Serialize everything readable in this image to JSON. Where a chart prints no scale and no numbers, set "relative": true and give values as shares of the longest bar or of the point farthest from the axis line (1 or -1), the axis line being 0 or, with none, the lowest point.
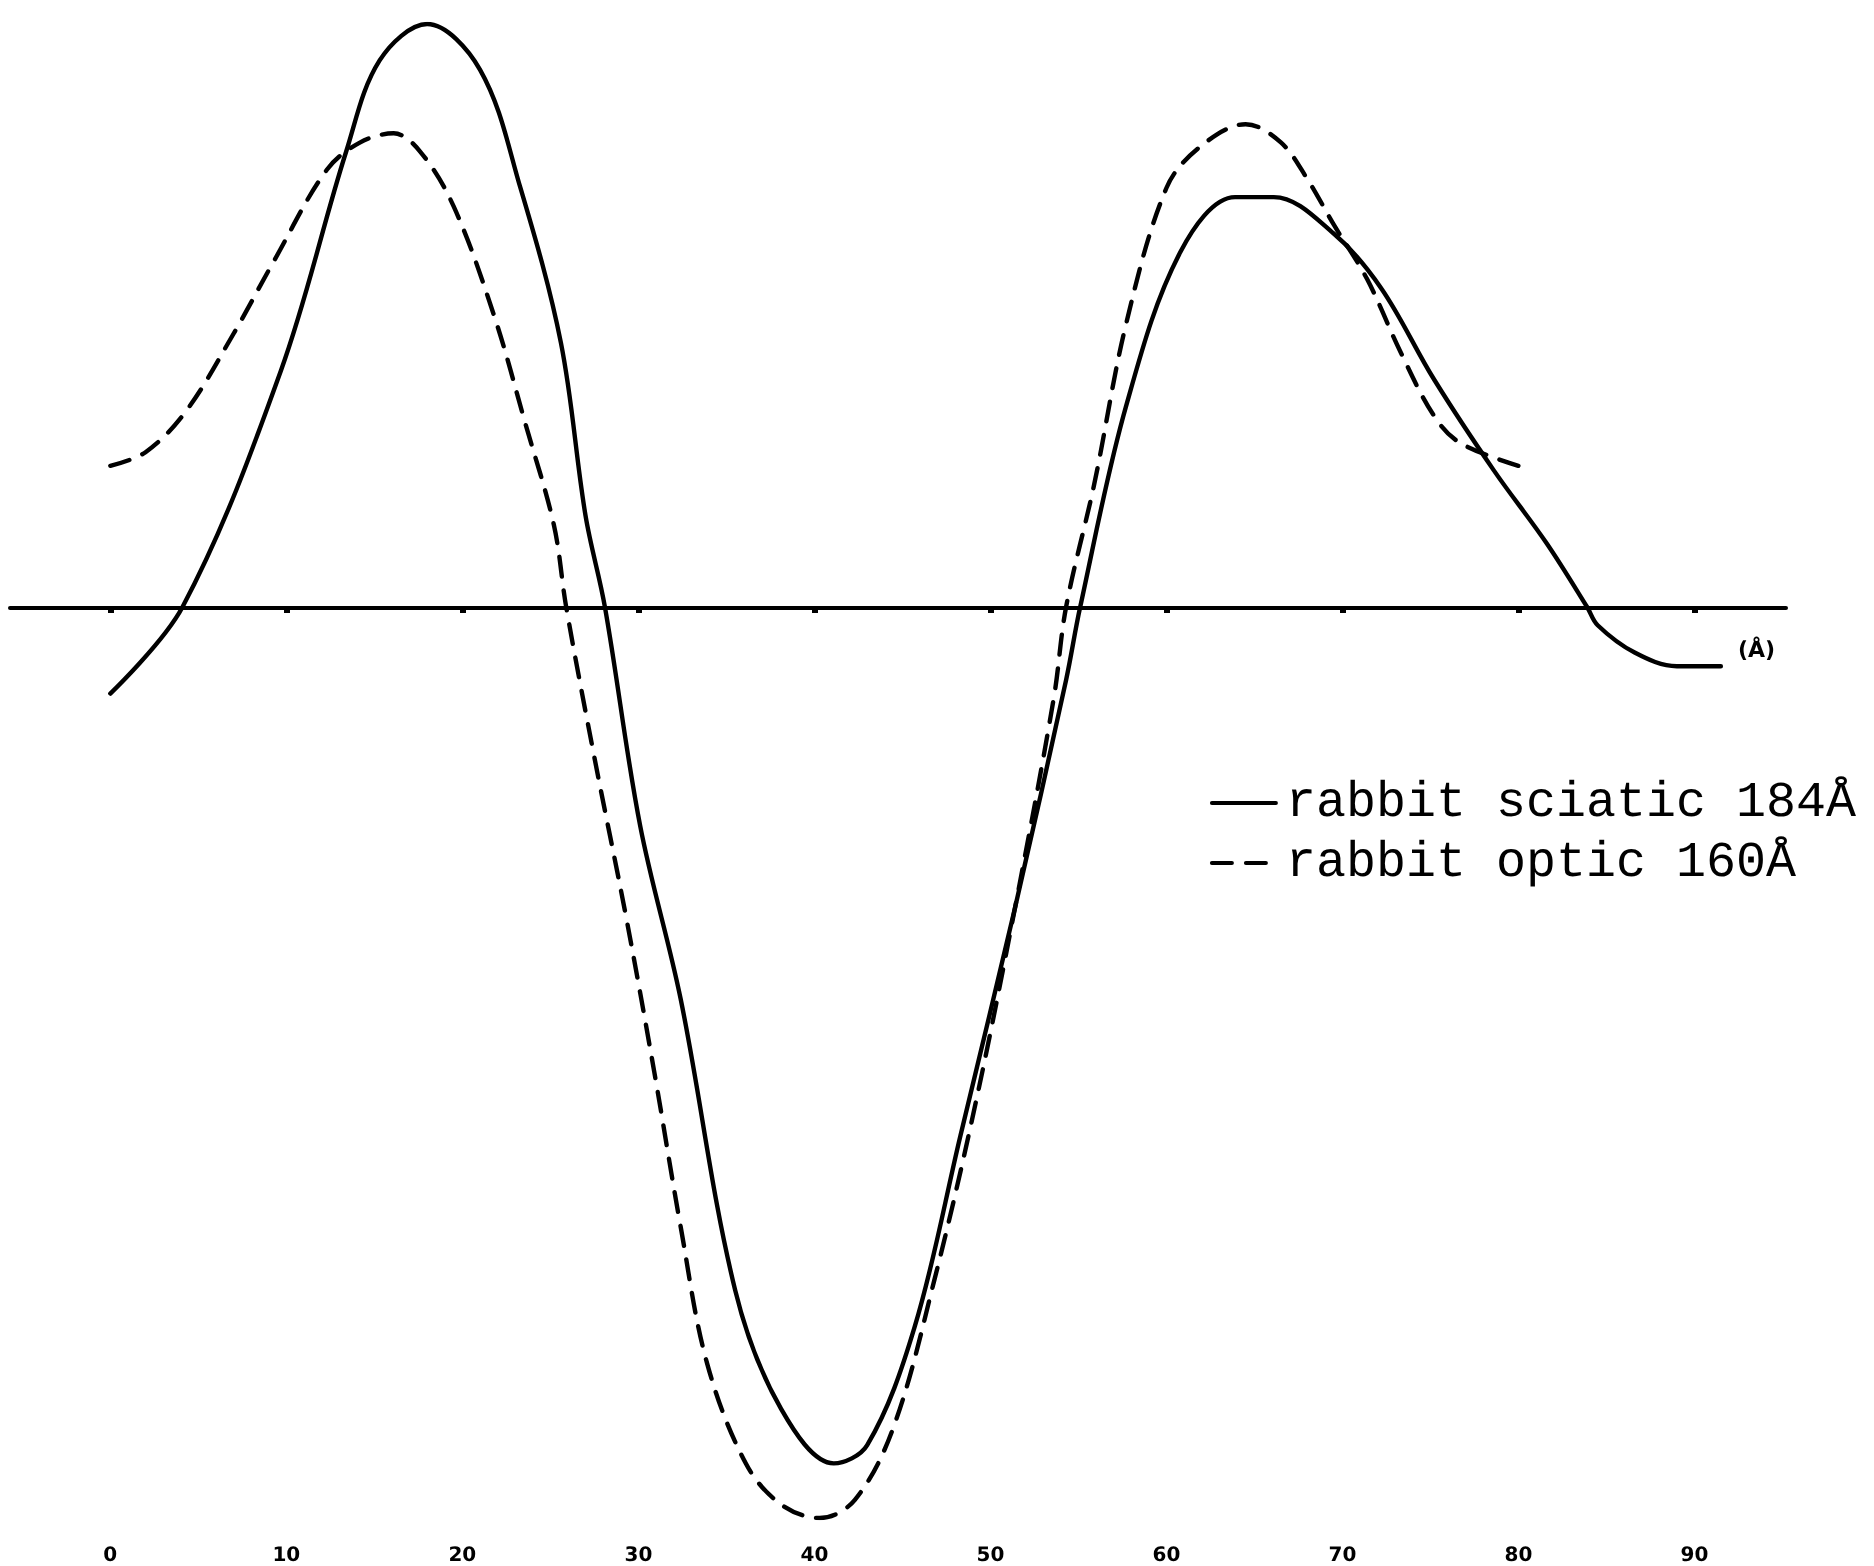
{
  "chart_data": {
    "type": "line",
    "relative": true,
    "xlabel": "(Å)",
    "xlim": [
      -5.7,
      95.2
    ],
    "xticks": [
      0,
      10,
      20,
      30,
      40,
      50,
      60,
      70,
      80,
      90
    ],
    "grid": false,
    "legend": "right",
    "marker": "none",
    "series": [
      {
        "name": "rabbit sciatic 184Å",
        "color": "#000000",
        "line_style": "solid",
        "x": [
          0,
          4.1,
          9.7,
          13.4,
          15.3,
          18.0,
          21.0,
          23.3,
          25.6,
          27.0,
          28.1,
          30.1,
          32.4,
          35.5,
          38.1,
          41.1,
          43.0,
          45.7,
          48.3,
          51.4,
          54.3,
          55.1,
          57.7,
          60.8,
          63.9,
          66.1,
          69.5,
          72.2,
          75.2,
          78.6,
          81.6,
          83.9,
          84.5,
          86.6,
          89.0,
          91.5
        ],
        "values": [
          -0.095,
          0,
          0.26,
          0.5,
          0.6,
          0.64,
          0.59,
          0.46,
          0.29,
          0.1,
          0,
          -0.24,
          -0.43,
          -0.75,
          -0.88,
          -0.94,
          -0.92,
          -0.79,
          -0.58,
          -0.33,
          -0.08,
          0,
          0.22,
          0.39,
          0.45,
          0.45,
          0.41,
          0.35,
          0.25,
          0.15,
          0.07,
          0,
          -0.02,
          -0.05,
          -0.065,
          -0.065
        ]
      },
      {
        "name": "rabbit optic 160Å",
        "color": "#000000",
        "line_style": "dashed",
        "x": [
          0,
          2.0,
          4.3,
          7.0,
          9.3,
          12.3,
          14.2,
          16.1,
          17.6,
          19.5,
          21.8,
          23.6,
          25.2,
          25.9,
          27.5,
          29.3,
          30.9,
          32.4,
          33.9,
          36.1,
          38.1,
          40.3,
          42.3,
          44.5,
          46.8,
          49.1,
          51.4,
          53.6,
          54.3,
          55.9,
          57.7,
          60.0,
          61.9,
          64.5,
          66.5,
          68.0,
          69.5,
          71.4,
          73.3,
          75.2,
          76.7,
          80.0
        ],
        "values": [
          0.155,
          0.17,
          0.215,
          0.3,
          0.38,
          0.48,
          0.51,
          0.52,
          0.5,
          0.44,
          0.32,
          0.2,
          0.09,
          0,
          -0.165,
          -0.34,
          -0.51,
          -0.68,
          -0.83,
          -0.94,
          -0.985,
          -1,
          -0.98,
          -0.9,
          -0.74,
          -0.55,
          -0.33,
          -0.1,
          0,
          0.135,
          0.31,
          0.46,
          0.505,
          0.53,
          0.51,
          0.47,
          0.42,
          0.36,
          0.28,
          0.21,
          0.18,
          0.155
        ]
      }
    ]
  }
}
